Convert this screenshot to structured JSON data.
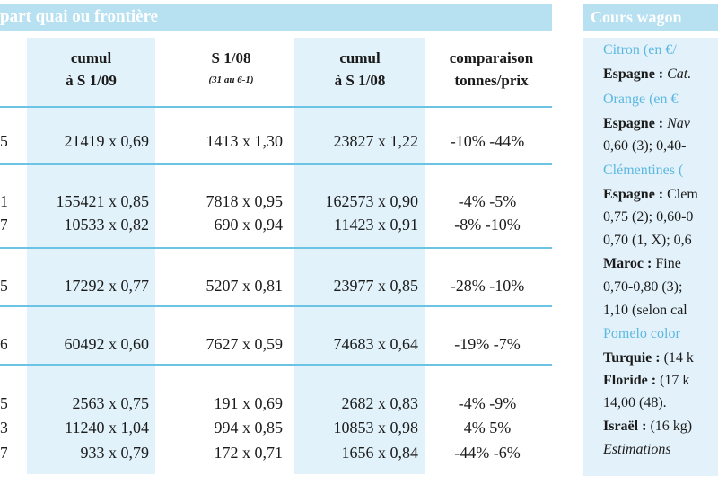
{
  "left": {
    "title": "part quai ou frontière",
    "columns": [
      {
        "line1": "cumul",
        "line2": "à S 1/09",
        "sub": ""
      },
      {
        "line1": "S 1/08",
        "line2": "",
        "sub": "(31 au 6-1)"
      },
      {
        "line1": "cumul",
        "line2": "à S 1/08",
        "sub": ""
      },
      {
        "line1": "comparaison",
        "line2": "tonnes/prix",
        "sub": ""
      }
    ],
    "rows": [
      {
        "c0": "5",
        "c1": "21419 x 0,69",
        "c2": "1413 x 1,30",
        "c3": "23827 x 1,22",
        "c4": "-10%  -44%"
      },
      {
        "c0": "1",
        "c1": "155421 x 0,85",
        "c2": "7818 x 0,95",
        "c3": "162573 x 0,90",
        "c4": "-4%   -5%"
      },
      {
        "c0": "7",
        "c1": "10533 x 0,82",
        "c2": "690 x 0,94",
        "c3": "11423 x 0,91",
        "c4": "-8%  -10%"
      },
      {
        "c0": "5",
        "c1": "17292 x 0,77",
        "c2": "5207 x 0,81",
        "c3": "23977 x 0,85",
        "c4": "-28%  -10%"
      },
      {
        "c0": "6",
        "c1": "60492 x 0,60",
        "c2": "7627 x 0,59",
        "c3": "74683 x 0,64",
        "c4": "-19%   -7%"
      },
      {
        "c0": "5",
        "c1": "2563 x 0,75",
        "c2": "191 x 0,69",
        "c3": "2682 x 0,83",
        "c4": "-4%   -9%"
      },
      {
        "c0": "3",
        "c1": "11240 x 1,04",
        "c2": "994 x 0,85",
        "c3": "10853 x 0,98",
        "c4": "4%    5%"
      },
      {
        "c0": "7",
        "c1": "933 x 0,79",
        "c2": "172 x 0,71",
        "c3": "1656 x 0,84",
        "c4": "-44%   -6%"
      }
    ]
  },
  "right": {
    "title": "Cours wagon",
    "lines": [
      {
        "text": "Citron (en €/",
        "style": "h"
      },
      {
        "bold": "Espagne :",
        "text": " Cat.",
        "style": "b"
      },
      {
        "text": "Orange (en €",
        "style": "h"
      },
      {
        "bold": "Espagne :",
        "text": "  Nav",
        "style": "b"
      },
      {
        "text": "0,60 (3); 0,40-",
        "style": "n"
      },
      {
        "text": "Clémentines (",
        "style": "h"
      },
      {
        "bold": "Espagne :",
        "text": " Clem",
        "style": "b"
      },
      {
        "text": "0,75 (2); 0,60-0",
        "style": "n"
      },
      {
        "text": "0,70 (1, X); 0,6",
        "style": "n"
      },
      {
        "bold": "Maroc :",
        "text": "  Fine",
        "style": "b"
      },
      {
        "text": "0,70-0,80 (3); ",
        "style": "n"
      },
      {
        "text": "1,10 (selon cal",
        "style": "n"
      },
      {
        "text": "Pomelo color",
        "style": "h"
      },
      {
        "bold": "Turquie :",
        "text": " (14 k",
        "style": "b"
      },
      {
        "bold": "Floride :",
        "text": " (17 k",
        "style": "b"
      },
      {
        "text": "14,00 (48).",
        "style": "n"
      },
      {
        "bold": "Israël :",
        "text": " (16 kg)",
        "style": "b"
      },
      {
        "text": "Estimations",
        "style": "i"
      }
    ]
  },
  "colors": {
    "header_bg": "#b7e0f1",
    "column_bg": "#e1f2fa",
    "rule": "#6cc4e4",
    "heading_text": "#5cb8e0"
  }
}
